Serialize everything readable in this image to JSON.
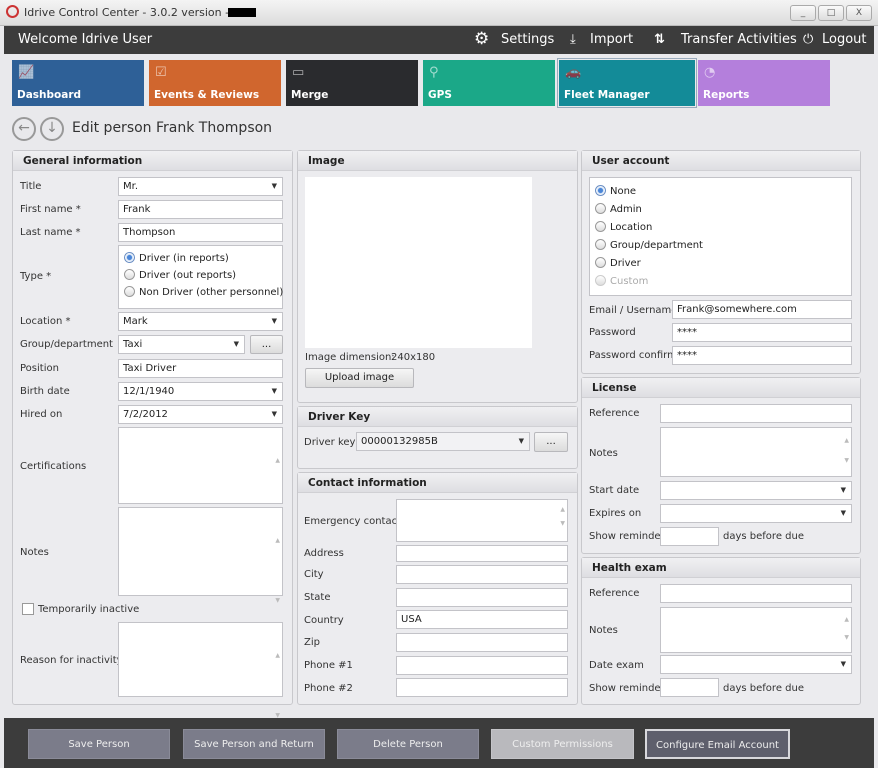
{
  "window": {
    "title": "Idrive Control Center - 3.0.2 version -",
    "minimize": "_",
    "maximize": "□",
    "close": "X"
  },
  "header": {
    "welcome": "Welcome Idrive User",
    "settings": "Settings",
    "import": "Import",
    "transfer": "Transfer Activities",
    "logout": "Logout"
  },
  "tiles": [
    {
      "label": "Dashboard",
      "color": "#2e6097"
    },
    {
      "label": "Events & Reviews",
      "color": "#d0662e"
    },
    {
      "label": "Merge",
      "color": "#2a2b2e"
    },
    {
      "label": "GPS",
      "color": "#1ba888"
    },
    {
      "label": "Fleet Manager",
      "color": "#138b98"
    },
    {
      "label": "Reports",
      "color": "#b47fdc"
    }
  ],
  "page": {
    "title": "Edit person Frank Thompson"
  },
  "general": {
    "header": "General information",
    "title_label": "Title",
    "title_value": "Mr.",
    "first_label": "First name *",
    "first_value": "Frank",
    "last_label": "Last name *",
    "last_value": "Thompson",
    "type_label": "Type *",
    "type_options": [
      "Driver (in reports)",
      "Driver (out reports)",
      "Non Driver (other personnel)"
    ],
    "type_selected": "Driver (in reports)",
    "location_label": "Location *",
    "location_value": "Mark",
    "group_label": "Group/department",
    "group_value": "Taxi",
    "more": "...",
    "position_label": "Position",
    "position_value": "Taxi Driver",
    "birth_label": "Birth date",
    "birth_value": "12/1/1940",
    "hired_label": "Hired on",
    "hired_value": "7/2/2012",
    "cert_label": "Certifications",
    "notes_label": "Notes",
    "inactive_label": "Temporarily inactive",
    "reason_label": "Reason for inactivity"
  },
  "image": {
    "header": "Image",
    "dimension_label": "Image dimension:",
    "dimension_value": "240x180",
    "upload": "Upload image"
  },
  "driver_key": {
    "header": "Driver Key",
    "label": "Driver key",
    "value": "00000132985B",
    "more": "..."
  },
  "contact": {
    "header": "Contact information",
    "emergency": "Emergency contact",
    "address": "Address",
    "city": "City",
    "state": "State",
    "country": "Country",
    "country_value": "USA",
    "zip": "Zip",
    "phone1": "Phone #1",
    "phone2": "Phone #2"
  },
  "user_account": {
    "header": "User account",
    "options": [
      "None",
      "Admin",
      "Location",
      "Group/department",
      "Driver",
      "Custom"
    ],
    "selected": "None",
    "email_label": "Email / Username",
    "email_value": "Frank@somewhere.com",
    "password_label": "Password",
    "password_value": "****",
    "confirm_label": "Password confirm",
    "confirm_value": "****"
  },
  "license": {
    "header": "License",
    "reference": "Reference",
    "notes": "Notes",
    "start": "Start date",
    "expires": "Expires on",
    "reminder": "Show reminder",
    "days": "days before due"
  },
  "health": {
    "header": "Health exam",
    "reference": "Reference",
    "notes": "Notes",
    "date": "Date exam",
    "reminder": "Show reminder",
    "days": "days before due"
  },
  "footer": {
    "save": "Save Person",
    "save_return": "Save Person and Return",
    "delete": "Delete Person",
    "permissions": "Custom Permissions",
    "email": "Configure Email Account"
  }
}
